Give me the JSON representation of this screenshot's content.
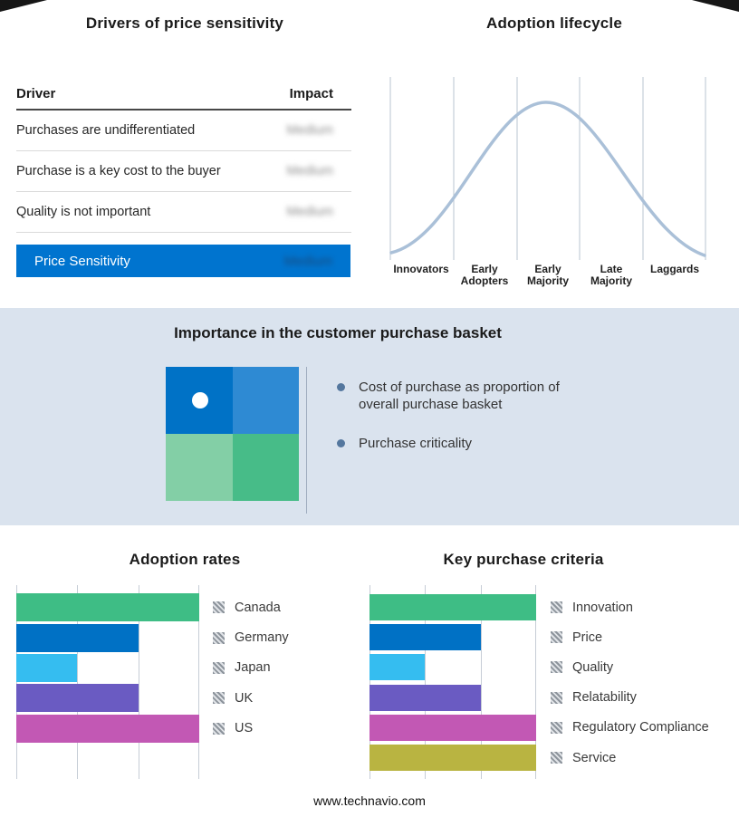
{
  "page": {
    "footer_url": "www.technavio.com",
    "band_background": "#dae3ee"
  },
  "drivers": {
    "title": "Drivers of price sensitivity",
    "columns": {
      "driver": "Driver",
      "impact": "Impact"
    },
    "rows": [
      {
        "driver": "Purchases are undifferentiated",
        "impact": "Medium",
        "redacted": true
      },
      {
        "driver": "Purchase is a key cost to the buyer",
        "impact": "Medium",
        "redacted": true
      },
      {
        "driver": "Quality is not important",
        "impact": "Medium",
        "redacted": true
      }
    ],
    "summary": {
      "label": "Price Sensitivity",
      "value": "Medium",
      "redacted": true,
      "bar_color": "#0074cf"
    }
  },
  "basket": {
    "title": "Importance in the customer purchase basket",
    "bullets": [
      "Cost of purchase as proportion of overall purchase basket",
      "Purchase criticality"
    ],
    "quadrant": {
      "top_left": "#0072c6",
      "top_right": "#2e8ad3",
      "bottom_left": "#83cfa6",
      "bottom_right": "#47bc88",
      "dot_color": "#ffffff"
    }
  },
  "chart_data": [
    {
      "id": "adoption-lifecycle",
      "type": "line",
      "title": "Adoption lifecycle",
      "categories": [
        "Innovators",
        "Early Adopters",
        "Early Majority",
        "Late Majority",
        "Laggards"
      ],
      "shape": "bell-curve",
      "peak_category": "Early Majority",
      "line_color": "#aac0d8",
      "grid": true,
      "legend_position": "none"
    },
    {
      "id": "adoption-rates",
      "type": "bar",
      "title": "Adoption rates",
      "orientation": "horizontal",
      "categories": [
        "Canada",
        "Germany",
        "Japan",
        "UK",
        "US"
      ],
      "values": [
        3,
        2,
        1,
        2,
        3
      ],
      "xlim": [
        0,
        3
      ],
      "grid": true,
      "legend_position": "right",
      "colors": [
        "#3ebd85",
        "#0071c5",
        "#35bdf0",
        "#6a5bc2",
        "#c258b4"
      ]
    },
    {
      "id": "key-purchase-criteria",
      "type": "bar",
      "title": "Key purchase criteria",
      "orientation": "horizontal",
      "categories": [
        "Innovation",
        "Price",
        "Quality",
        "Relatability",
        "Regulatory Compliance",
        "Service"
      ],
      "values": [
        3,
        2,
        1,
        2,
        3,
        3
      ],
      "xlim": [
        0,
        3
      ],
      "grid": true,
      "legend_position": "right",
      "colors": [
        "#3ebd85",
        "#0071c5",
        "#35bdf0",
        "#6a5bc2",
        "#c258b4",
        "#b9b441"
      ]
    }
  ]
}
